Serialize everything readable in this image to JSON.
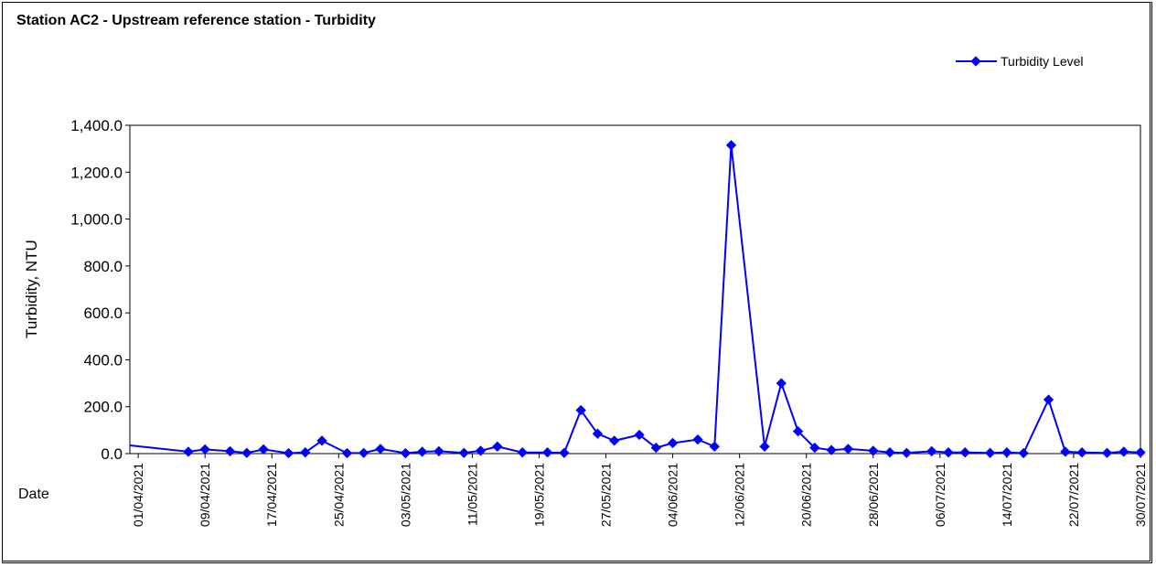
{
  "chart_data": {
    "type": "line",
    "title": "Station AC2 - Upstream reference station - Turbidity",
    "ylabel": "Turbidity, NTU",
    "xlabel": "Date",
    "ylim": [
      0,
      1400
    ],
    "yticks": [
      "0.0",
      "200.0",
      "400.0",
      "600.0",
      "800.0",
      "1,000.0",
      "1,200.0",
      "1,400.0"
    ],
    "ytick_values": [
      0,
      200,
      400,
      600,
      800,
      1000,
      1200,
      1400
    ],
    "x_range": [
      "31/03/2021",
      "30/07/2021"
    ],
    "xticks": [
      "01/04/2021",
      "09/04/2021",
      "17/04/2021",
      "25/04/2021",
      "03/05/2021",
      "11/05/2021",
      "19/05/2021",
      "27/05/2021",
      "04/06/2021",
      "12/06/2021",
      "20/06/2021",
      "28/06/2021",
      "06/07/2021",
      "14/07/2021",
      "22/07/2021",
      "30/07/2021"
    ],
    "grid": false,
    "legend_position": "top-right",
    "series": [
      {
        "name": "Turbidity Level",
        "color": "#0000ff",
        "points": [
          {
            "x": "31/03/2021",
            "y": 35
          },
          {
            "x": "07/04/2021",
            "y": 8
          },
          {
            "x": "09/04/2021",
            "y": 18
          },
          {
            "x": "12/04/2021",
            "y": 10
          },
          {
            "x": "14/04/2021",
            "y": 3
          },
          {
            "x": "16/04/2021",
            "y": 18
          },
          {
            "x": "19/04/2021",
            "y": 2
          },
          {
            "x": "21/04/2021",
            "y": 5
          },
          {
            "x": "23/04/2021",
            "y": 55
          },
          {
            "x": "26/04/2021",
            "y": 2
          },
          {
            "x": "28/04/2021",
            "y": 3
          },
          {
            "x": "30/04/2021",
            "y": 20
          },
          {
            "x": "03/05/2021",
            "y": 2
          },
          {
            "x": "05/05/2021",
            "y": 8
          },
          {
            "x": "07/05/2021",
            "y": 10
          },
          {
            "x": "10/05/2021",
            "y": 3
          },
          {
            "x": "12/05/2021",
            "y": 12
          },
          {
            "x": "14/05/2021",
            "y": 30
          },
          {
            "x": "17/05/2021",
            "y": 5
          },
          {
            "x": "20/05/2021",
            "y": 5
          },
          {
            "x": "22/05/2021",
            "y": 3
          },
          {
            "x": "24/05/2021",
            "y": 185
          },
          {
            "x": "26/05/2021",
            "y": 85
          },
          {
            "x": "28/05/2021",
            "y": 55
          },
          {
            "x": "31/05/2021",
            "y": 80
          },
          {
            "x": "02/06/2021",
            "y": 25
          },
          {
            "x": "04/06/2021",
            "y": 45
          },
          {
            "x": "07/06/2021",
            "y": 60
          },
          {
            "x": "09/06/2021",
            "y": 30
          },
          {
            "x": "11/06/2021",
            "y": 1315
          },
          {
            "x": "15/06/2021",
            "y": 30
          },
          {
            "x": "17/06/2021",
            "y": 300
          },
          {
            "x": "19/06/2021",
            "y": 95
          },
          {
            "x": "21/06/2021",
            "y": 25
          },
          {
            "x": "23/06/2021",
            "y": 15
          },
          {
            "x": "25/06/2021",
            "y": 20
          },
          {
            "x": "28/06/2021",
            "y": 12
          },
          {
            "x": "30/06/2021",
            "y": 5
          },
          {
            "x": "02/07/2021",
            "y": 3
          },
          {
            "x": "05/07/2021",
            "y": 10
          },
          {
            "x": "07/07/2021",
            "y": 5
          },
          {
            "x": "09/07/2021",
            "y": 5
          },
          {
            "x": "12/07/2021",
            "y": 3
          },
          {
            "x": "14/07/2021",
            "y": 5
          },
          {
            "x": "16/07/2021",
            "y": 2
          },
          {
            "x": "19/07/2021",
            "y": 230
          },
          {
            "x": "21/07/2021",
            "y": 8
          },
          {
            "x": "23/07/2021",
            "y": 5
          },
          {
            "x": "26/07/2021",
            "y": 3
          },
          {
            "x": "28/07/2021",
            "y": 8
          },
          {
            "x": "30/07/2021",
            "y": 5
          }
        ]
      }
    ]
  }
}
